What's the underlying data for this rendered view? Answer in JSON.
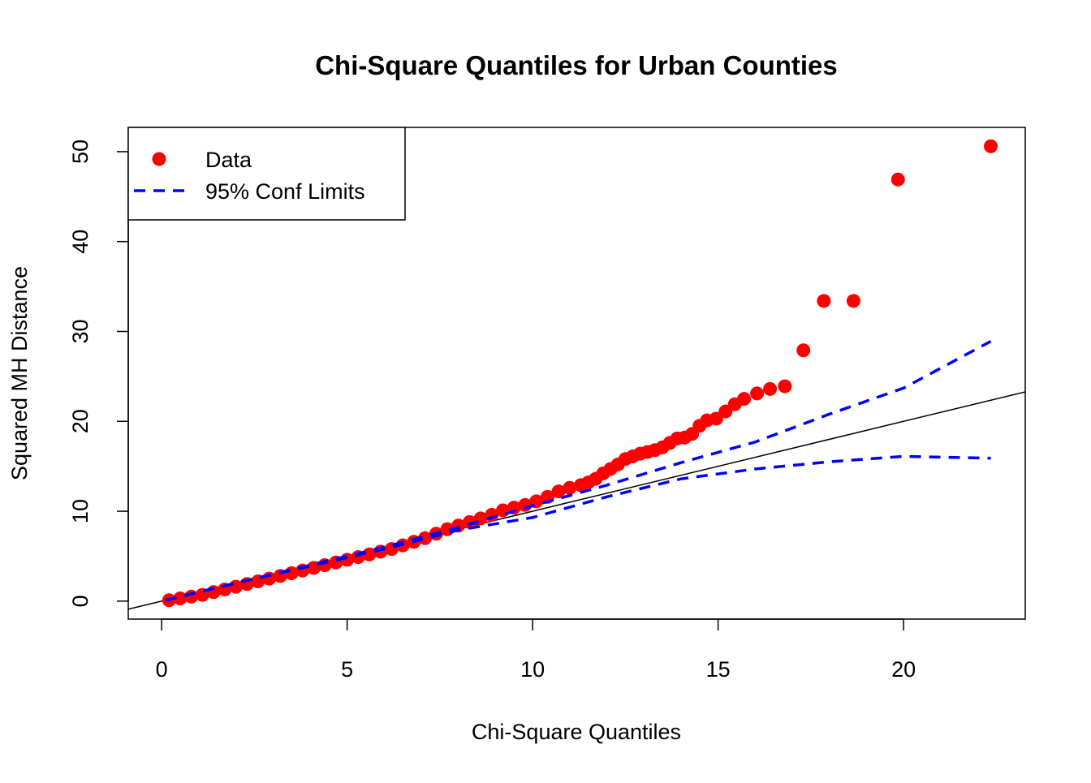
{
  "chart_data": {
    "type": "scatter",
    "title": "Chi-Square Quantiles for Urban Counties",
    "x_label": "Chi-Square Quantiles",
    "y_label": "Squared MH Distance",
    "xlim": [
      -0.9,
      23.28
    ],
    "ylim": [
      -2.0,
      52.7
    ],
    "xticks": [
      0,
      5,
      10,
      15,
      20
    ],
    "yticks": [
      0,
      10,
      20,
      30,
      40,
      50
    ],
    "legend": "top-left",
    "reference_line": {
      "intercept": 0,
      "slope": 1,
      "color": "#000000"
    },
    "series": [
      {
        "name": "Data",
        "color": "#ff0000",
        "x": [
          0.2,
          0.5,
          0.8,
          1.1,
          1.4,
          1.7,
          2.0,
          2.3,
          2.6,
          2.9,
          3.2,
          3.5,
          3.8,
          4.1,
          4.4,
          4.7,
          5.0,
          5.3,
          5.6,
          5.9,
          6.2,
          6.5,
          6.8,
          7.1,
          7.4,
          7.7,
          8.0,
          8.3,
          8.6,
          8.9,
          9.2,
          9.5,
          9.8,
          10.1,
          10.4,
          10.7,
          11.0,
          11.3,
          11.5,
          11.7,
          11.9,
          12.1,
          12.3,
          12.5,
          12.7,
          12.9,
          13.1,
          13.3,
          13.5,
          13.7,
          13.9,
          14.1,
          14.3,
          14.5,
          14.7,
          14.95,
          15.2,
          15.45,
          15.7,
          16.05,
          16.4,
          16.8,
          17.3,
          17.85,
          18.65,
          19.85,
          22.35
        ],
        "values": [
          0.1,
          0.3,
          0.5,
          0.7,
          1.0,
          1.3,
          1.6,
          1.9,
          2.2,
          2.5,
          2.8,
          3.1,
          3.4,
          3.7,
          4.0,
          4.3,
          4.6,
          4.9,
          5.2,
          5.5,
          5.8,
          6.2,
          6.6,
          7.0,
          7.5,
          8.0,
          8.4,
          8.8,
          9.2,
          9.6,
          10.1,
          10.4,
          10.7,
          11.1,
          11.6,
          12.2,
          12.6,
          12.9,
          13.2,
          13.6,
          14.2,
          14.7,
          15.2,
          15.8,
          16.1,
          16.4,
          16.6,
          16.8,
          17.1,
          17.6,
          18.1,
          18.2,
          18.6,
          19.5,
          20.1,
          20.3,
          21.1,
          21.9,
          22.5,
          23.1,
          23.6,
          23.9,
          27.9,
          33.4,
          33.4,
          46.9,
          50.6
        ]
      },
      {
        "name": "95% Conf Limits",
        "color": "#0000ff",
        "x": [
          0.1,
          2,
          4,
          6,
          8,
          10,
          12,
          14,
          16,
          18,
          20,
          22.35
        ],
        "upper": [
          0.1,
          2.0,
          4.0,
          6.0,
          8.2,
          10.6,
          12.9,
          15.4,
          17.7,
          20.8,
          23.7,
          28.9
        ],
        "lower": [
          0.1,
          2.0,
          3.9,
          5.8,
          7.9,
          9.3,
          11.6,
          13.6,
          14.7,
          15.5,
          16.1,
          15.9
        ]
      }
    ]
  }
}
